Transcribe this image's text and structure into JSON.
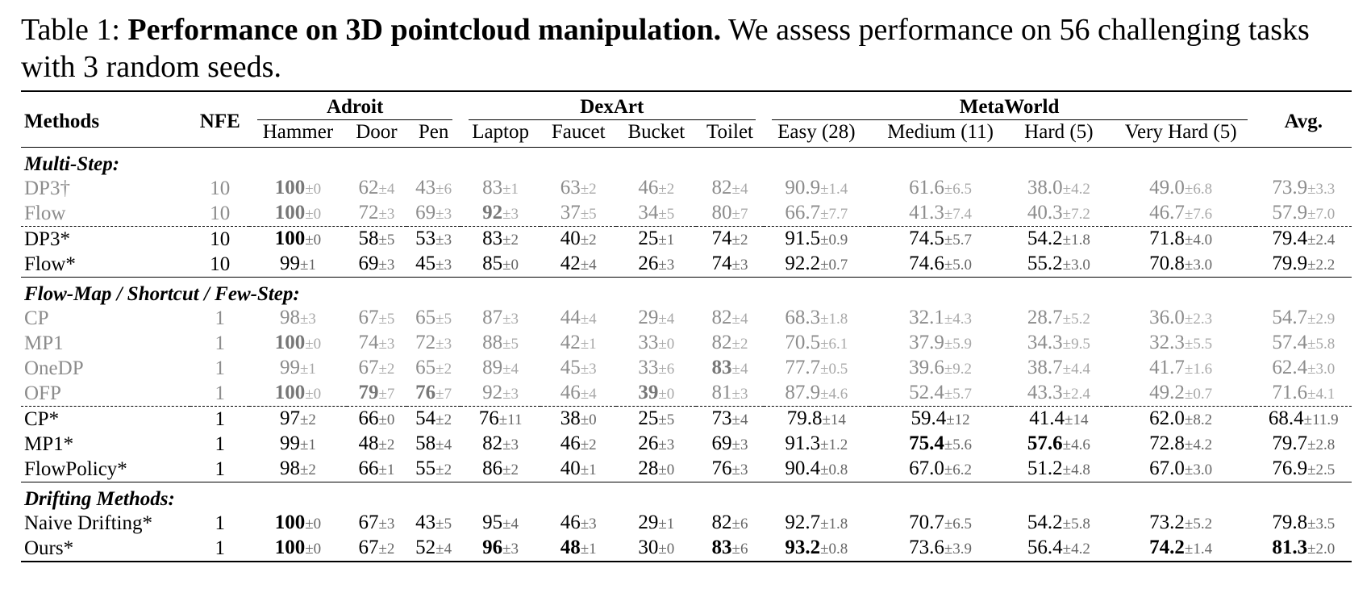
{
  "caption": {
    "label": "Table 1:",
    "bold": "Performance on 3D pointcloud manipulation.",
    "text": "We assess performance on 56 challenging tasks with 3 random seeds."
  },
  "header": {
    "methods": "Methods",
    "nfe": "NFE",
    "avg": "Avg.",
    "groups": [
      {
        "name": "Adroit",
        "columns": [
          "Hammer",
          "Door",
          "Pen"
        ]
      },
      {
        "name": "DexArt",
        "columns": [
          "Laptop",
          "Faucet",
          "Bucket",
          "Toilet"
        ]
      },
      {
        "name": "MetaWorld",
        "columns": [
          "Easy (28)",
          "Medium (11)",
          "Hard (5)",
          "Very Hard (5)"
        ]
      }
    ]
  },
  "sections": [
    {
      "title": "Multi-Step:",
      "blocks": [
        {
          "style": "gray",
          "rows": [
            {
              "method": "DP3†",
              "nfe": "10",
              "cells": [
                [
                  "100",
                  "±0",
                  1
                ],
                [
                  "62",
                  "±4",
                  0
                ],
                [
                  "43",
                  "±6",
                  0
                ],
                [
                  "83",
                  "±1",
                  0
                ],
                [
                  "63",
                  "±2",
                  0
                ],
                [
                  "46",
                  "±2",
                  0
                ],
                [
                  "82",
                  "±4",
                  0
                ],
                [
                  "90.9",
                  "±1.4",
                  0
                ],
                [
                  "61.6",
                  "±6.5",
                  0
                ],
                [
                  "38.0",
                  "±4.2",
                  0
                ],
                [
                  "49.0",
                  "±6.8",
                  0
                ],
                [
                  "73.9",
                  "±3.3",
                  0
                ]
              ]
            },
            {
              "method": "Flow",
              "nfe": "10",
              "cells": [
                [
                  "100",
                  "±0",
                  1
                ],
                [
                  "72",
                  "±3",
                  0
                ],
                [
                  "69",
                  "±3",
                  0
                ],
                [
                  "92",
                  "±3",
                  1
                ],
                [
                  "37",
                  "±5",
                  0
                ],
                [
                  "34",
                  "±5",
                  0
                ],
                [
                  "80",
                  "±7",
                  0
                ],
                [
                  "66.7",
                  "±7.7",
                  0
                ],
                [
                  "41.3",
                  "±7.4",
                  0
                ],
                [
                  "40.3",
                  "±7.2",
                  0
                ],
                [
                  "46.7",
                  "±7.6",
                  0
                ],
                [
                  "57.9",
                  "±7.0",
                  0
                ]
              ]
            }
          ]
        },
        {
          "style": "black",
          "rows": [
            {
              "method": "DP3*",
              "nfe": "10",
              "cells": [
                [
                  "100",
                  "±0",
                  1
                ],
                [
                  "58",
                  "±5",
                  0
                ],
                [
                  "53",
                  "±3",
                  0
                ],
                [
                  "83",
                  "±2",
                  0
                ],
                [
                  "40",
                  "±2",
                  0
                ],
                [
                  "25",
                  "±1",
                  0
                ],
                [
                  "74",
                  "±2",
                  0
                ],
                [
                  "91.5",
                  "±0.9",
                  0
                ],
                [
                  "74.5",
                  "±5.7",
                  0
                ],
                [
                  "54.2",
                  "±1.8",
                  0
                ],
                [
                  "71.8",
                  "±4.0",
                  0
                ],
                [
                  "79.4",
                  "±2.4",
                  0
                ]
              ]
            },
            {
              "method": "Flow*",
              "nfe": "10",
              "cells": [
                [
                  "99",
                  "±1",
                  0
                ],
                [
                  "69",
                  "±3",
                  0
                ],
                [
                  "45",
                  "±3",
                  0
                ],
                [
                  "85",
                  "±0",
                  0
                ],
                [
                  "42",
                  "±4",
                  0
                ],
                [
                  "26",
                  "±3",
                  0
                ],
                [
                  "74",
                  "±3",
                  0
                ],
                [
                  "92.2",
                  "±0.7",
                  0
                ],
                [
                  "74.6",
                  "±5.0",
                  0
                ],
                [
                  "55.2",
                  "±3.0",
                  0
                ],
                [
                  "70.8",
                  "±3.0",
                  0
                ],
                [
                  "79.9",
                  "±2.2",
                  0
                ]
              ]
            }
          ]
        }
      ]
    },
    {
      "title": "Flow-Map / Shortcut / Few-Step:",
      "blocks": [
        {
          "style": "gray",
          "rows": [
            {
              "method": "CP",
              "nfe": "1",
              "cells": [
                [
                  "98",
                  "±3",
                  0
                ],
                [
                  "67",
                  "±5",
                  0
                ],
                [
                  "65",
                  "±5",
                  0
                ],
                [
                  "87",
                  "±3",
                  0
                ],
                [
                  "44",
                  "±4",
                  0
                ],
                [
                  "29",
                  "±4",
                  0
                ],
                [
                  "82",
                  "±4",
                  0
                ],
                [
                  "68.3",
                  "±1.8",
                  0
                ],
                [
                  "32.1",
                  "±4.3",
                  0
                ],
                [
                  "28.7",
                  "±5.2",
                  0
                ],
                [
                  "36.0",
                  "±2.3",
                  0
                ],
                [
                  "54.7",
                  "±2.9",
                  0
                ]
              ]
            },
            {
              "method": "MP1",
              "nfe": "1",
              "cells": [
                [
                  "100",
                  "±0",
                  1
                ],
                [
                  "74",
                  "±3",
                  0
                ],
                [
                  "72",
                  "±3",
                  0
                ],
                [
                  "88",
                  "±5",
                  0
                ],
                [
                  "42",
                  "±1",
                  0
                ],
                [
                  "33",
                  "±0",
                  0
                ],
                [
                  "82",
                  "±2",
                  0
                ],
                [
                  "70.5",
                  "±6.1",
                  0
                ],
                [
                  "37.9",
                  "±5.9",
                  0
                ],
                [
                  "34.3",
                  "±9.5",
                  0
                ],
                [
                  "32.3",
                  "±5.5",
                  0
                ],
                [
                  "57.4",
                  "±5.8",
                  0
                ]
              ]
            },
            {
              "method": "OneDP",
              "nfe": "1",
              "cells": [
                [
                  "99",
                  "±1",
                  0
                ],
                [
                  "67",
                  "±2",
                  0
                ],
                [
                  "65",
                  "±2",
                  0
                ],
                [
                  "89",
                  "±4",
                  0
                ],
                [
                  "45",
                  "±3",
                  0
                ],
                [
                  "33",
                  "±6",
                  0
                ],
                [
                  "83",
                  "±4",
                  1
                ],
                [
                  "77.7",
                  "±0.5",
                  0
                ],
                [
                  "39.6",
                  "±9.2",
                  0
                ],
                [
                  "38.7",
                  "±4.4",
                  0
                ],
                [
                  "41.7",
                  "±1.6",
                  0
                ],
                [
                  "62.4",
                  "±3.0",
                  0
                ]
              ]
            },
            {
              "method": "OFP",
              "nfe": "1",
              "cells": [
                [
                  "100",
                  "±0",
                  1
                ],
                [
                  "79",
                  "±7",
                  1
                ],
                [
                  "76",
                  "±7",
                  1
                ],
                [
                  "92",
                  "±3",
                  0
                ],
                [
                  "46",
                  "±4",
                  0
                ],
                [
                  "39",
                  "±0",
                  1
                ],
                [
                  "81",
                  "±3",
                  0
                ],
                [
                  "87.9",
                  "±4.6",
                  0
                ],
                [
                  "52.4",
                  "±5.7",
                  0
                ],
                [
                  "43.3",
                  "±2.4",
                  0
                ],
                [
                  "49.2",
                  "±0.7",
                  0
                ],
                [
                  "71.6",
                  "±4.1",
                  0
                ]
              ]
            }
          ]
        },
        {
          "style": "black",
          "rows": [
            {
              "method": "CP*",
              "nfe": "1",
              "cells": [
                [
                  "97",
                  "±2",
                  0
                ],
                [
                  "66",
                  "±0",
                  0
                ],
                [
                  "54",
                  "±2",
                  0
                ],
                [
                  "76",
                  "±11",
                  0
                ],
                [
                  "38",
                  "±0",
                  0
                ],
                [
                  "25",
                  "±5",
                  0
                ],
                [
                  "73",
                  "±4",
                  0
                ],
                [
                  "79.8",
                  "±14",
                  0
                ],
                [
                  "59.4",
                  "±12",
                  0
                ],
                [
                  "41.4",
                  "±14",
                  0
                ],
                [
                  "62.0",
                  "±8.2",
                  0
                ],
                [
                  "68.4",
                  "±11.9",
                  0
                ]
              ]
            },
            {
              "method": "MP1*",
              "nfe": "1",
              "cells": [
                [
                  "99",
                  "±1",
                  0
                ],
                [
                  "48",
                  "±2",
                  0
                ],
                [
                  "58",
                  "±4",
                  0
                ],
                [
                  "82",
                  "±3",
                  0
                ],
                [
                  "46",
                  "±2",
                  0
                ],
                [
                  "26",
                  "±3",
                  0
                ],
                [
                  "69",
                  "±3",
                  0
                ],
                [
                  "91.3",
                  "±1.2",
                  0
                ],
                [
                  "75.4",
                  "±5.6",
                  1
                ],
                [
                  "57.6",
                  "±4.6",
                  1
                ],
                [
                  "72.8",
                  "±4.2",
                  0
                ],
                [
                  "79.7",
                  "±2.8",
                  0
                ]
              ]
            },
            {
              "method": "FlowPolicy*",
              "nfe": "1",
              "cells": [
                [
                  "98",
                  "±2",
                  0
                ],
                [
                  "66",
                  "±1",
                  0
                ],
                [
                  "55",
                  "±2",
                  0
                ],
                [
                  "86",
                  "±2",
                  0
                ],
                [
                  "40",
                  "±1",
                  0
                ],
                [
                  "28",
                  "±0",
                  0
                ],
                [
                  "76",
                  "±3",
                  0
                ],
                [
                  "90.4",
                  "±0.8",
                  0
                ],
                [
                  "67.0",
                  "±6.2",
                  0
                ],
                [
                  "51.2",
                  "±4.8",
                  0
                ],
                [
                  "67.0",
                  "±3.0",
                  0
                ],
                [
                  "76.9",
                  "±2.5",
                  0
                ]
              ]
            }
          ]
        }
      ]
    },
    {
      "title": "Drifting Methods:",
      "blocks": [
        {
          "style": "black",
          "rows": [
            {
              "method": "Naive Drifting*",
              "nfe": "1",
              "cells": [
                [
                  "100",
                  "±0",
                  1
                ],
                [
                  "67",
                  "±3",
                  0
                ],
                [
                  "43",
                  "±5",
                  0
                ],
                [
                  "95",
                  "±4",
                  0
                ],
                [
                  "46",
                  "±3",
                  0
                ],
                [
                  "29",
                  "±1",
                  0
                ],
                [
                  "82",
                  "±6",
                  0
                ],
                [
                  "92.7",
                  "±1.8",
                  0
                ],
                [
                  "70.7",
                  "±6.5",
                  0
                ],
                [
                  "54.2",
                  "±5.8",
                  0
                ],
                [
                  "73.2",
                  "±5.2",
                  0
                ],
                [
                  "79.8",
                  "±3.5",
                  0
                ]
              ]
            },
            {
              "method": "Ours*",
              "nfe": "1",
              "cells": [
                [
                  "100",
                  "±0",
                  1
                ],
                [
                  "67",
                  "±2",
                  0
                ],
                [
                  "52",
                  "±4",
                  0
                ],
                [
                  "96",
                  "±3",
                  1
                ],
                [
                  "48",
                  "±1",
                  1
                ],
                [
                  "30",
                  "±0",
                  0
                ],
                [
                  "83",
                  "±6",
                  1
                ],
                [
                  "93.2",
                  "±0.8",
                  1
                ],
                [
                  "73.6",
                  "±3.9",
                  0
                ],
                [
                  "56.4",
                  "±4.2",
                  0
                ],
                [
                  "74.2",
                  "±1.4",
                  1
                ],
                [
                  "81.3",
                  "±2.0",
                  1
                ]
              ]
            }
          ]
        }
      ]
    }
  ]
}
